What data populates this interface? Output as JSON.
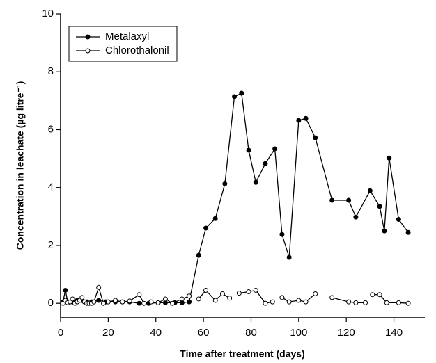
{
  "chart_data": {
    "type": "line",
    "x_label": "Time after treatment (days)",
    "y_label": "Concentration in leachate (µg litre⁻¹)",
    "xlim": [
      0,
      153
    ],
    "xticks": [
      0,
      20,
      40,
      60,
      80,
      100,
      120,
      140
    ],
    "ylim": [
      -0.5,
      10
    ],
    "yticks": [
      0,
      2,
      4,
      6,
      8,
      10
    ],
    "legend": "upper-left",
    "series": [
      {
        "name": "Metalaxyl",
        "color": "#000000",
        "filled": true,
        "x": [
          1,
          2,
          3,
          5,
          7,
          9,
          11,
          13,
          16,
          19,
          23,
          26,
          29,
          33,
          37,
          41,
          44,
          48,
          51,
          54,
          58,
          61,
          65,
          69,
          73,
          76,
          79,
          82,
          86,
          90,
          93,
          96,
          100,
          103,
          107,
          114,
          121,
          124,
          130,
          134,
          136,
          138,
          142,
          146
        ],
        "values": [
          0.05,
          0.45,
          0.05,
          0.05,
          0.1,
          0.1,
          0.05,
          0.05,
          0.1,
          0.05,
          0.05,
          0.05,
          0.05,
          0.0,
          0.0,
          0.02,
          0.02,
          0.02,
          0.02,
          0.05,
          1.66,
          2.6,
          2.93,
          4.13,
          7.14,
          7.26,
          5.29,
          4.18,
          4.83,
          5.34,
          2.38,
          1.59,
          6.32,
          6.39,
          5.72,
          3.56,
          3.56,
          2.98,
          3.89,
          3.35,
          2.5,
          5.02,
          2.9,
          2.45
        ]
      },
      {
        "name": "Chlorothalonil",
        "color": "#000000",
        "filled": false,
        "x": [
          1,
          2,
          3,
          4,
          5,
          6,
          7,
          8,
          9,
          10,
          11,
          12,
          13,
          14,
          16,
          18,
          20,
          23,
          26,
          29,
          33,
          35,
          38,
          41,
          44,
          47,
          51,
          54,
          56,
          58,
          61,
          65,
          68,
          71,
          73,
          75,
          79,
          82,
          86,
          89,
          91,
          93,
          96,
          100,
          103,
          107,
          110,
          114,
          121,
          124,
          128,
          129,
          131,
          134,
          137,
          142,
          146
        ],
        "values": [
          0.0,
          0.1,
          0.02,
          0.05,
          0.15,
          0.0,
          0.05,
          0.1,
          0.2,
          0.05,
          0.0,
          0.0,
          0.0,
          0.05,
          0.55,
          0.0,
          0.05,
          0.1,
          0.05,
          0.08,
          0.3,
          0.0,
          0.05,
          0.02,
          0.15,
          0.0,
          0.15,
          0.25,
          null,
          0.15,
          0.45,
          0.1,
          0.33,
          0.18,
          null,
          0.35,
          0.4,
          0.45,
          0.0,
          0.05,
          null,
          0.2,
          0.05,
          0.1,
          0.05,
          0.33,
          null,
          0.2,
          0.05,
          0.02,
          0.02,
          null,
          0.3,
          0.3,
          0.02,
          0.02,
          0.0
        ]
      }
    ]
  }
}
